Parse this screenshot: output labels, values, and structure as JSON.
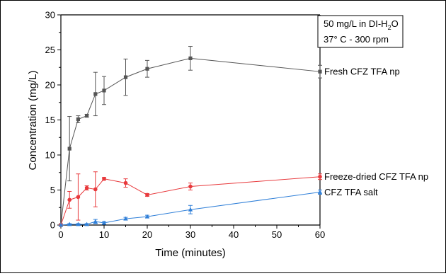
{
  "chart_data": {
    "type": "line",
    "title": "",
    "xlabel": "Time (minutes)",
    "ylabel": "Concentration (mg/L)",
    "xlim": [
      0,
      60
    ],
    "ylim": [
      0,
      30
    ],
    "xticks": [
      "0",
      "10",
      "20",
      "30",
      "40",
      "50",
      "60"
    ],
    "yticks": [
      "0",
      "5",
      "10",
      "15",
      "20",
      "25",
      "30"
    ],
    "grid": false,
    "info_box": {
      "line1": "50 mg/L in DI-H",
      "line1_sub": "2",
      "line1_end": "O",
      "line2": "37° C - 300 rpm"
    },
    "series": [
      {
        "name": "Fresh CFZ TFA np",
        "color": "#555555",
        "marker": "square",
        "x": [
          0,
          2,
          4,
          6,
          8,
          10,
          15,
          20,
          30,
          60
        ],
        "y": [
          0,
          10.9,
          15.1,
          15.6,
          18.7,
          19.2,
          21.1,
          22.3,
          23.8,
          21.9
        ],
        "err": [
          0,
          4.6,
          0.5,
          0.2,
          3.1,
          2.0,
          2.6,
          1.2,
          1.7,
          0.9
        ]
      },
      {
        "name": "Freeze-dried CFZ TFA np",
        "color": "#e8393c",
        "marker": "circle",
        "x": [
          0,
          2,
          4,
          6,
          8,
          10,
          15,
          20,
          30,
          60
        ],
        "y": [
          0,
          3.6,
          4.0,
          5.3,
          5.1,
          6.6,
          6.0,
          4.3,
          5.5,
          6.9
        ],
        "err": [
          0,
          1.2,
          3.3,
          0.3,
          2.5,
          0.2,
          0.6,
          0.2,
          0.5,
          0.4
        ]
      },
      {
        "name": "CFZ TFA salt",
        "color": "#2f7fd8",
        "marker": "triangle",
        "x": [
          0,
          2,
          4,
          6,
          8,
          10,
          15,
          20,
          30,
          60
        ],
        "y": [
          0,
          0.1,
          0.1,
          0.1,
          0.5,
          0.3,
          0.9,
          1.2,
          2.2,
          4.7
        ],
        "err": [
          0,
          0.1,
          0.1,
          0.1,
          0.3,
          0.2,
          0.2,
          0.2,
          0.6,
          0.3
        ]
      }
    ]
  }
}
